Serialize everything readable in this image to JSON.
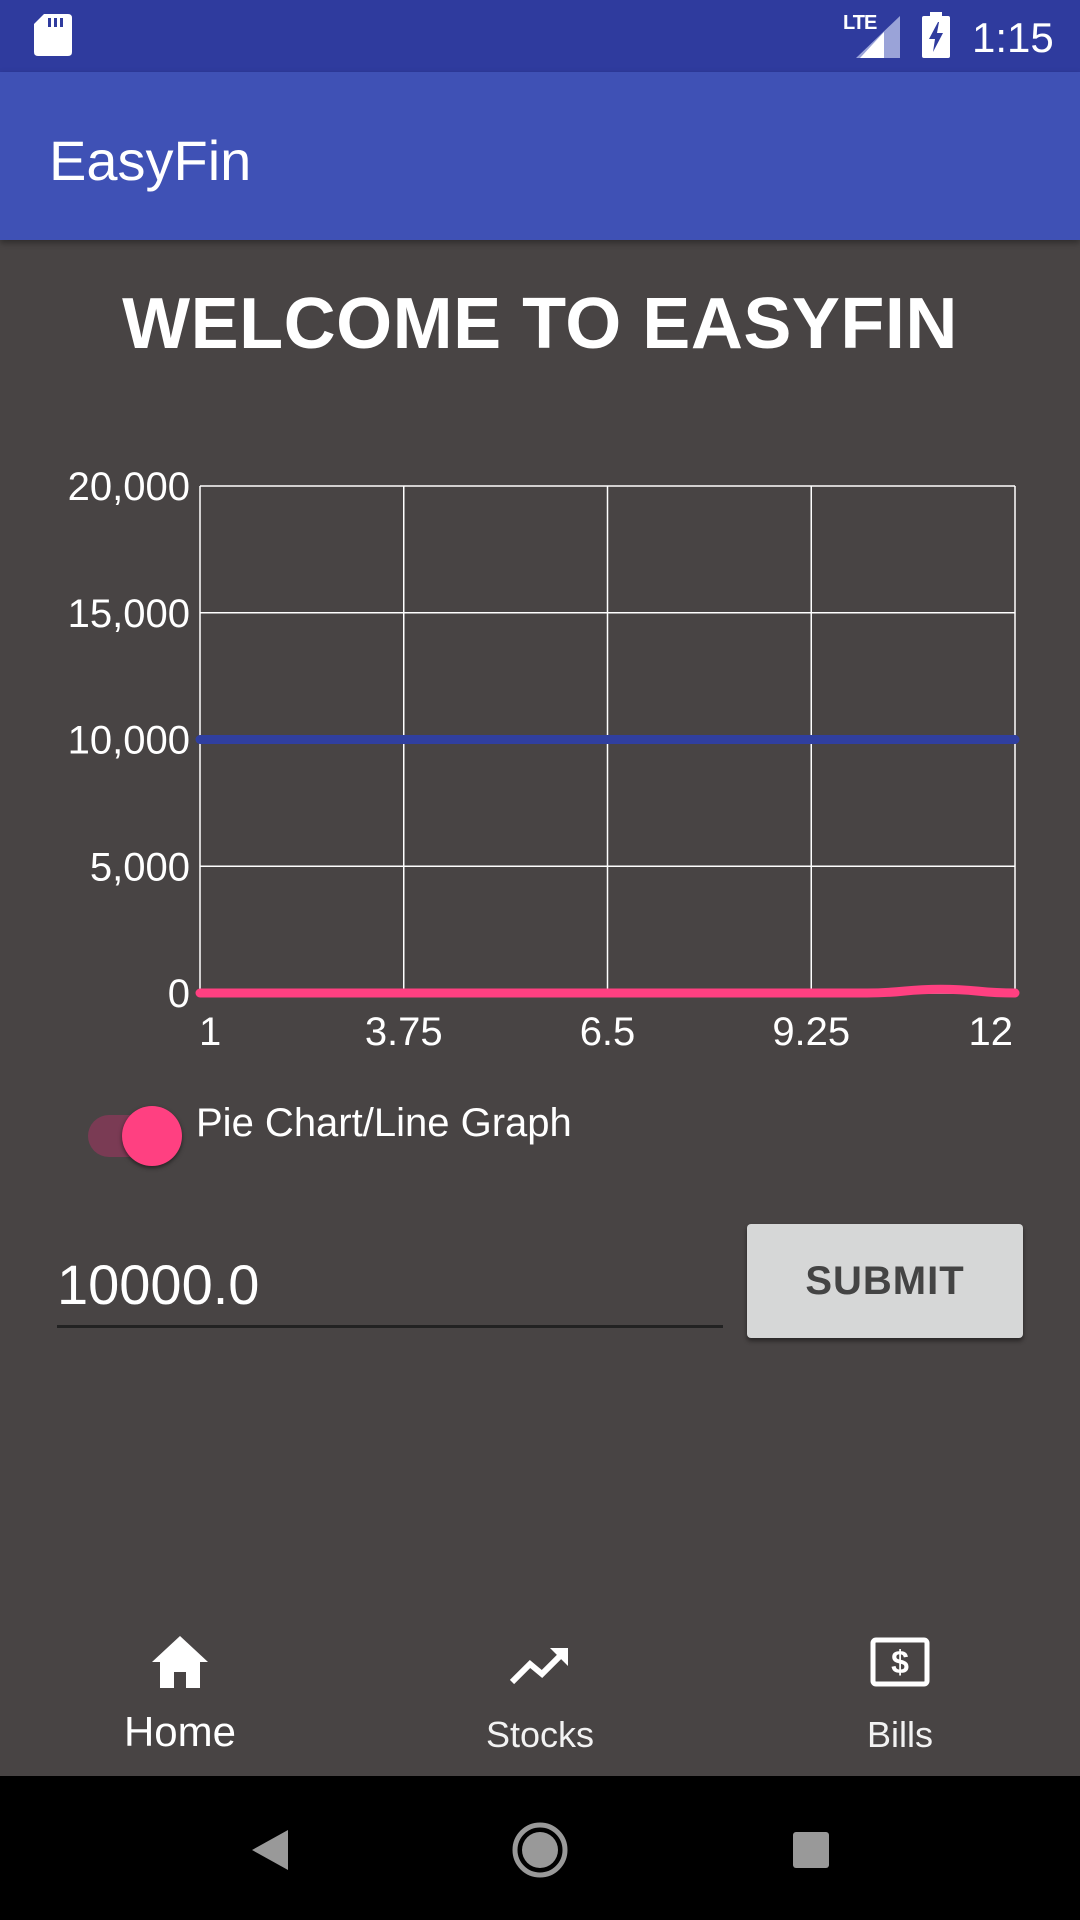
{
  "status_bar": {
    "network": "LTE",
    "time": "1:15"
  },
  "app_bar": {
    "title": "EasyFin"
  },
  "main": {
    "welcome": "WELCOME TO EASYFIN"
  },
  "chart_data": {
    "type": "line",
    "title": "",
    "xlabel": "",
    "ylabel": "",
    "x_ticks": [
      "1",
      "3.75",
      "6.5",
      "9.25",
      "12"
    ],
    "y_ticks": [
      "0",
      "5,000",
      "10,000",
      "15,000",
      "20,000"
    ],
    "xlim": [
      1,
      12
    ],
    "ylim": [
      0,
      20000
    ],
    "grid": true,
    "series": [
      {
        "color": "#303f9f",
        "x": [
          1,
          2,
          3,
          4,
          5,
          6,
          7,
          8,
          9,
          10,
          11,
          12
        ],
        "y": [
          10000,
          10000,
          10000,
          10000,
          10000,
          10000,
          10000,
          10000,
          10000,
          10000,
          10000,
          10000
        ]
      },
      {
        "color": "#ff4081",
        "x": [
          1,
          2,
          3,
          4,
          5,
          6,
          7,
          8,
          9,
          10,
          11,
          12
        ],
        "y": [
          0,
          0,
          0,
          0,
          0,
          0,
          0,
          0,
          0,
          0,
          150,
          0
        ]
      }
    ]
  },
  "toggle": {
    "label": "Pie Chart/Line Graph",
    "checked": true
  },
  "amount_input": {
    "value": "10000.0"
  },
  "submit": {
    "label": "SUBMIT"
  },
  "bottom_nav": {
    "items": [
      {
        "label": "Home",
        "icon": "home-icon",
        "active": true
      },
      {
        "label": "Stocks",
        "icon": "trending-up-icon",
        "active": false
      },
      {
        "label": "Bills",
        "icon": "bill-icon",
        "active": false
      }
    ]
  },
  "colors": {
    "status_bar": "#2f3b9e",
    "app_bar": "#3f51b5",
    "background": "#484444",
    "accent": "#ff4081"
  }
}
